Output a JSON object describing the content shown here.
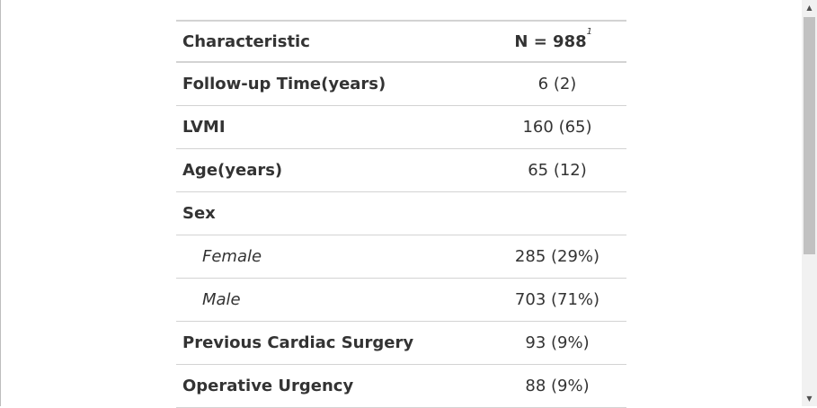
{
  "table": {
    "header": {
      "characteristic": "Characteristic",
      "n_label": "N = 988",
      "footnote_marker": "1"
    },
    "rows": [
      {
        "label": "Follow-up Time(years)",
        "value": "6 (2)"
      },
      {
        "label": "LVMI",
        "value": "160 (65)"
      },
      {
        "label": "Age(years)",
        "value": "65 (12)"
      },
      {
        "label": "Sex",
        "value": ""
      },
      {
        "label": "Female",
        "value": "285 (29%)"
      },
      {
        "label": "Male",
        "value": "703 (71%)"
      },
      {
        "label": "Previous Cardiac Surgery",
        "value": "93 (9%)"
      },
      {
        "label": "Operative Urgency",
        "value": "88 (9%)"
      }
    ]
  },
  "scrollbar": {
    "up_icon": "triangle-up-icon",
    "down_icon": "triangle-down-icon"
  }
}
